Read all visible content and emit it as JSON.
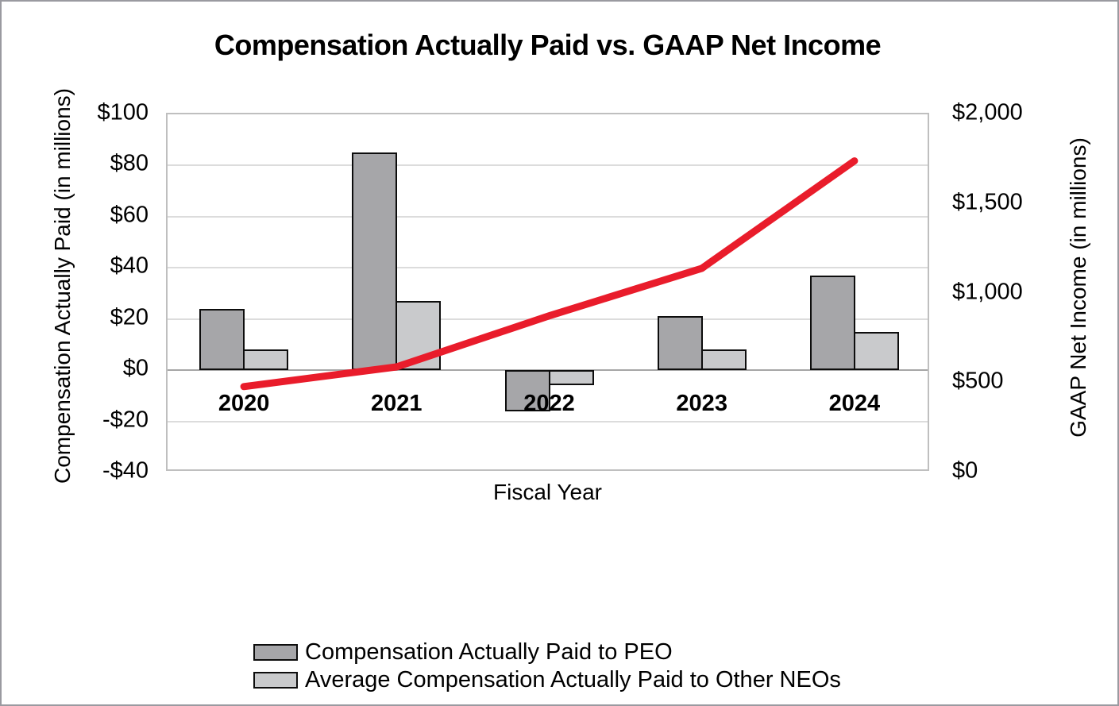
{
  "chart_data": {
    "type": "combo-bar-line",
    "title": "Compensation Actually Paid vs. GAAP Net Income",
    "categories": [
      "2020",
      "2021",
      "2022",
      "2023",
      "2024"
    ],
    "x_axis": {
      "title": "Fiscal Year"
    },
    "left_axis": {
      "title": "Compensation Actually Paid (in millions)",
      "min": -40,
      "max": 100,
      "tick_step": 20,
      "tick_labels": [
        "$100",
        "$80",
        "$60",
        "$40",
        "$20",
        "$0",
        "-$20",
        "-$40"
      ]
    },
    "right_axis": {
      "title": "GAAP Net Income (in millions)",
      "min": 0,
      "max": 2000,
      "tick_step": 500,
      "tick_labels": [
        "$2,000",
        "$1,500",
        "$1,000",
        "$500",
        "$0"
      ]
    },
    "series": [
      {
        "name": "Compensation Actually Paid to PEO",
        "type": "bar",
        "axis": "left",
        "color": "#a6a6a9",
        "values": [
          24,
          85,
          -16,
          21,
          37
        ]
      },
      {
        "name": "Average Compensation Actually Paid to Other NEOs",
        "type": "bar",
        "axis": "left",
        "color": "#c9cacc",
        "values": [
          8,
          27,
          -6,
          8,
          15
        ]
      },
      {
        "name": "GAAP Net Income",
        "type": "line",
        "axis": "right",
        "color": "#e91c2b",
        "values": [
          480,
          590,
          875,
          1140,
          1740
        ]
      }
    ],
    "legend": {
      "position": "bottom",
      "entries": [
        "Compensation Actually Paid to PEO",
        "Average Compensation Actually Paid to Other NEOs"
      ]
    },
    "grid": true,
    "colors": {
      "gridline": "#dcdcdc",
      "zero_axis": "#a6a6a6",
      "plot_border": "#bfbfbf",
      "bar_outline": "#0d0d0d"
    }
  }
}
